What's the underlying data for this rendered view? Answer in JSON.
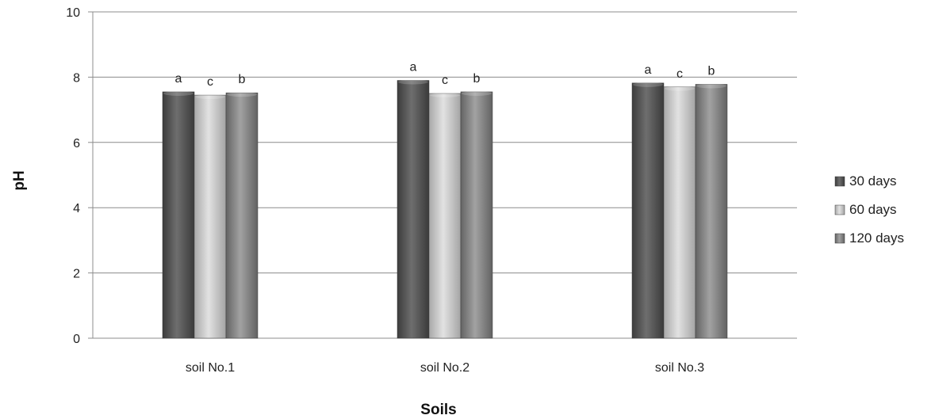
{
  "chart_data": {
    "type": "bar",
    "title": "",
    "xlabel": "Soils",
    "ylabel": "pH",
    "ylim": [
      0,
      10
    ],
    "yticks": [
      "0",
      "2",
      "4",
      "6",
      "8",
      "10"
    ],
    "grid": true,
    "legend": "right",
    "categories": [
      "soil No.1",
      "soil No.2",
      "soil No.3"
    ],
    "series": [
      {
        "name": "30 days",
        "values": [
          7.55,
          7.9,
          7.82
        ],
        "labels": [
          "a",
          "a",
          "a"
        ],
        "color": "#555555"
      },
      {
        "name": "60 days",
        "values": [
          7.45,
          7.5,
          7.7
        ],
        "labels": [
          "c",
          "c",
          "c"
        ],
        "color": "#c4c4c4"
      },
      {
        "name": "120 days",
        "values": [
          7.52,
          7.55,
          7.78
        ],
        "labels": [
          "b",
          "b",
          "b"
        ],
        "color": "#858585"
      }
    ]
  }
}
